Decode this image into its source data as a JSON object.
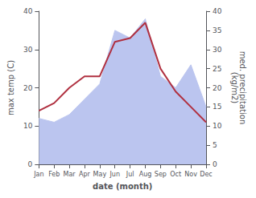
{
  "chart_data": {
    "type": "line",
    "categories": [
      "Jan",
      "Feb",
      "Mar",
      "Apr",
      "May",
      "Jun",
      "Jul",
      "Aug",
      "Sep",
      "Oct",
      "Nov",
      "Dec"
    ],
    "xlabel": "date (month)",
    "ylabel": "max temp (C)",
    "y2label": "med. precipitation\n(kg/m2)",
    "series": [
      {
        "type": "area",
        "axis": "y2",
        "color": "#bbc5ef",
        "values": [
          12,
          11,
          13,
          17,
          21,
          35,
          33,
          38,
          23,
          20,
          26,
          15
        ]
      },
      {
        "type": "line",
        "color": "#b03040",
        "values": [
          14,
          16,
          20,
          23,
          23,
          32,
          33,
          37,
          25,
          19,
          15,
          11
        ]
      }
    ],
    "ylim": [
      0,
      40
    ],
    "yticks": [
      0,
      10,
      20,
      30,
      40
    ],
    "y2lim": [
      0,
      40
    ],
    "y2ticks": [
      0,
      5,
      10,
      15,
      20,
      25,
      30,
      35,
      40
    ],
    "grid": false
  }
}
